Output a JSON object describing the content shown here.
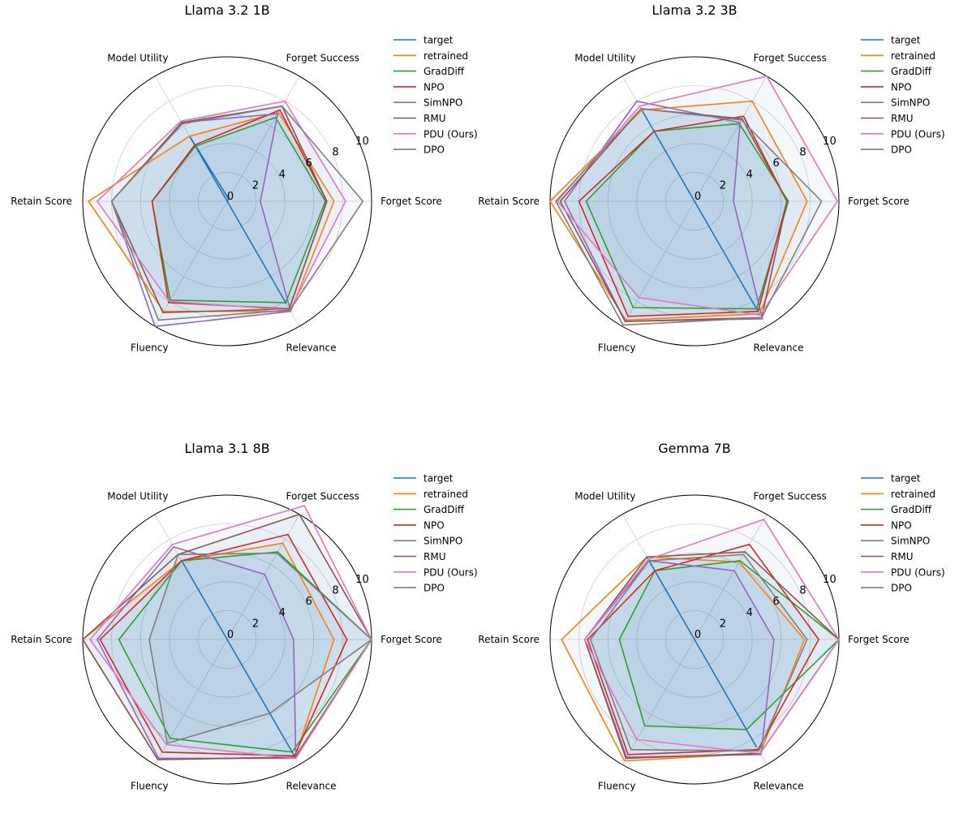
{
  "chart_data": [
    {
      "type": "radar",
      "title": "Llama 3.2 1B",
      "axes": [
        "Forget Score",
        "Forget Success",
        "Model Utility",
        "Retain Score",
        "Fluency",
        "Relevance"
      ],
      "r_ticks": [
        "0",
        "2",
        "4",
        "6",
        "8",
        "10"
      ],
      "rlim": [
        0,
        10
      ],
      "legend_position": "right",
      "series": [
        {
          "name": "target",
          "values": [
            0.0,
            0.2,
            5.2,
            0.0,
            0.0,
            8.2
          ]
        },
        {
          "name": "retrained",
          "values": [
            7.4,
            7.1,
            5.2,
            9.6,
            8.8,
            8.8
          ]
        },
        {
          "name": "GradDiff",
          "values": [
            6.8,
            6.7,
            4.4,
            5.2,
            7.9,
            8.1
          ]
        },
        {
          "name": "NPO",
          "values": [
            6.9,
            7.3,
            4.5,
            5.2,
            8.1,
            8.6
          ]
        },
        {
          "name": "SimNPO",
          "values": [
            2.3,
            7.0,
            6.3,
            8.0,
            10.0,
            8.8
          ]
        },
        {
          "name": "RMU",
          "values": [
            6.9,
            7.6,
            6.3,
            8.0,
            8.9,
            8.6
          ]
        },
        {
          "name": "PDU (Ours)",
          "values": [
            8.2,
            8.0,
            6.4,
            9.0,
            8.0,
            8.7
          ]
        },
        {
          "name": "DPO",
          "values": [
            9.4,
            7.6,
            6.2,
            8.0,
            9.5,
            8.7
          ]
        }
      ]
    },
    {
      "type": "radar",
      "title": "Llama 3.2 3B",
      "axes": [
        "Forget Score",
        "Forget Success",
        "Model Utility",
        "Retain Score",
        "Fluency",
        "Relevance"
      ],
      "r_ticks": [
        "0",
        "2",
        "4",
        "6",
        "8",
        "10"
      ],
      "rlim": [
        0,
        10
      ],
      "legend_position": "right",
      "series": [
        {
          "name": "target",
          "values": [
            0.0,
            0.0,
            7.3,
            0.0,
            0.0,
            8.8
          ]
        },
        {
          "name": "retrained",
          "values": [
            7.8,
            8.0,
            7.3,
            10.0,
            9.5,
            9.0
          ]
        },
        {
          "name": "GradDiff",
          "values": [
            6.5,
            6.2,
            5.6,
            7.5,
            8.5,
            8.6
          ]
        },
        {
          "name": "NPO",
          "values": [
            6.4,
            6.8,
            5.6,
            8.0,
            9.2,
            8.8
          ]
        },
        {
          "name": "SimNPO",
          "values": [
            2.7,
            6.3,
            8.0,
            9.0,
            9.6,
            9.4
          ]
        },
        {
          "name": "RMU",
          "values": [
            6.4,
            6.6,
            7.4,
            9.3,
            9.6,
            9.3
          ]
        },
        {
          "name": "PDU (Ours)",
          "values": [
            9.9,
            10.0,
            7.6,
            9.5,
            7.7,
            9.1
          ]
        },
        {
          "name": "DPO",
          "values": [
            8.8,
            6.5,
            7.4,
            9.6,
            9.9,
            9.3
          ]
        }
      ]
    },
    {
      "type": "radar",
      "title": "Llama 3.1 8B",
      "axes": [
        "Forget Score",
        "Forget Success",
        "Model Utility",
        "Retain Score",
        "Fluency",
        "Relevance"
      ],
      "r_ticks": [
        "0",
        "2",
        "4",
        "6",
        "8",
        "10"
      ],
      "rlim": [
        0,
        10
      ],
      "legend_position": "right",
      "series": [
        {
          "name": "target",
          "values": [
            0.0,
            0.0,
            6.3,
            0.0,
            0.0,
            9.3
          ]
        },
        {
          "name": "retrained",
          "values": [
            7.4,
            7.7,
            6.3,
            10.0,
            9.6,
            9.4
          ]
        },
        {
          "name": "GradDiff",
          "values": [
            10.0,
            7.0,
            6.3,
            7.5,
            7.9,
            9.0
          ]
        },
        {
          "name": "NPO",
          "values": [
            8.3,
            8.4,
            6.3,
            8.8,
            9.0,
            9.3
          ]
        },
        {
          "name": "SimNPO",
          "values": [
            4.6,
            5.2,
            7.4,
            9.0,
            9.5,
            9.5
          ]
        },
        {
          "name": "RMU",
          "values": [
            10.0,
            10.0,
            6.8,
            10.0,
            9.6,
            9.4
          ]
        },
        {
          "name": "PDU (Ours)",
          "values": [
            10.0,
            10.7,
            7.6,
            9.5,
            8.4,
            9.5
          ]
        },
        {
          "name": "DPO",
          "values": [
            10.0,
            6.9,
            6.8,
            5.4,
            8.3,
            5.9
          ]
        }
      ]
    },
    {
      "type": "radar",
      "title": "Gemma 7B",
      "axes": [
        "Forget Score",
        "Forget Success",
        "Model Utility",
        "Retain Score",
        "Fluency",
        "Relevance"
      ],
      "r_ticks": [
        "0",
        "2",
        "4",
        "6",
        "8",
        "10"
      ],
      "rlim": [
        0,
        10
      ],
      "legend_position": "right",
      "series": [
        {
          "name": "target",
          "values": [
            0.0,
            0.0,
            6.6,
            0.0,
            0.0,
            8.6
          ]
        },
        {
          "name": "retrained",
          "values": [
            7.6,
            6.2,
            6.6,
            9.2,
            9.7,
            9.1
          ]
        },
        {
          "name": "GradDiff",
          "values": [
            10.0,
            6.3,
            5.5,
            5.2,
            6.9,
            7.2
          ]
        },
        {
          "name": "NPO",
          "values": [
            8.6,
            7.6,
            5.5,
            7.4,
            9.2,
            8.8
          ]
        },
        {
          "name": "SimNPO",
          "values": [
            5.5,
            5.5,
            6.3,
            7.6,
            9.4,
            9.2
          ]
        },
        {
          "name": "RMU",
          "values": [
            10.0,
            7.0,
            6.6,
            7.6,
            9.5,
            9.1
          ]
        },
        {
          "name": "PDU (Ours)",
          "values": [
            10.0,
            9.6,
            6.4,
            7.6,
            8.0,
            9.1
          ]
        },
        {
          "name": "DPO",
          "values": [
            7.8,
            6.8,
            6.3,
            7.2,
            8.8,
            8.9
          ]
        }
      ]
    }
  ],
  "colors": {
    "target": "#1f77b4",
    "retrained": "#ff7f0e",
    "GradDiff": "#2ca02c",
    "NPO": "#d62728",
    "SimNPO": "#9467bd",
    "RMU": "#8c564b",
    "PDU (Ours)": "#e377c2",
    "DPO": "#7f7f7f"
  }
}
